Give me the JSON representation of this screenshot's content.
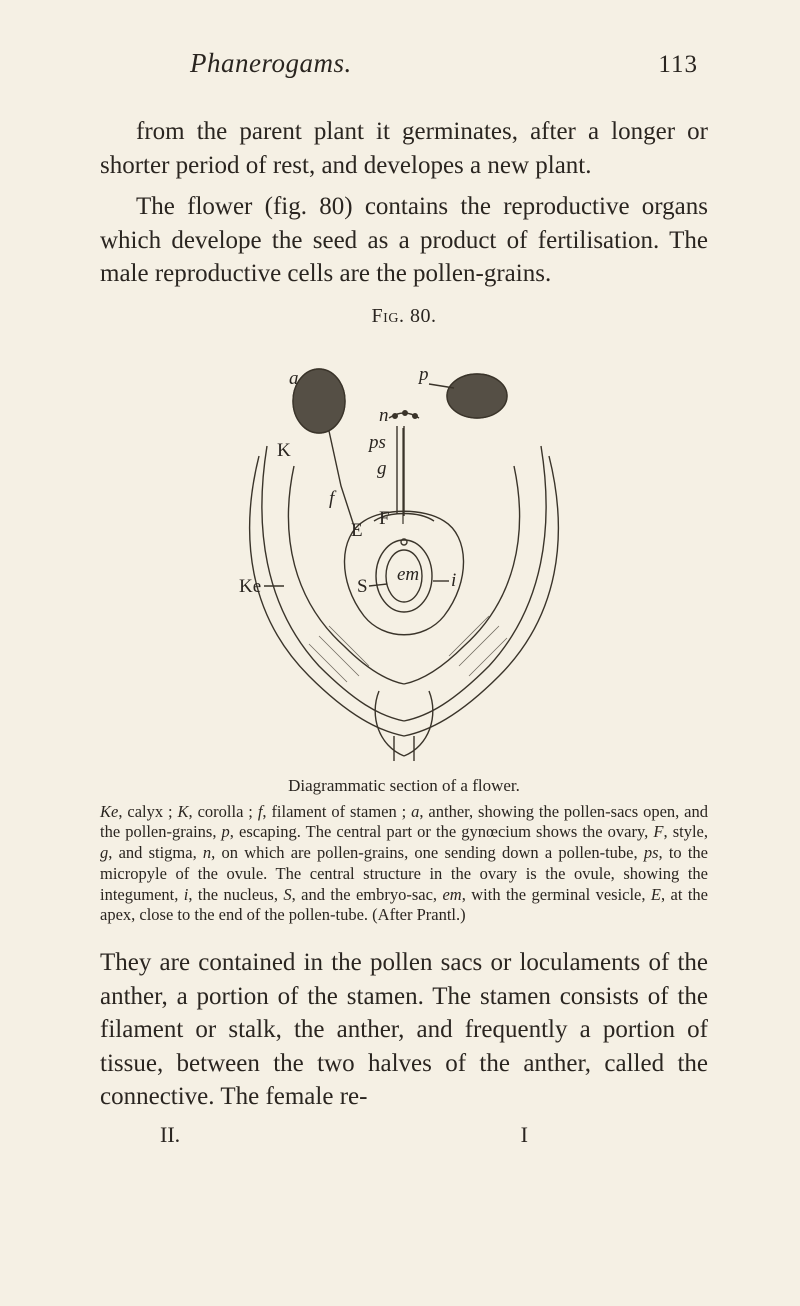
{
  "header": {
    "running_title": "Phanerogams.",
    "page_number": "113"
  },
  "paragraphs": {
    "p1": "from the parent plant it germinates, after a longer or shorter period of rest, and developes a new plant.",
    "p2": "The flower (fig. 80) contains the reproductive organs which develope the seed as a product of fertilisation. The male reproductive cells are the pollen-grains."
  },
  "figure": {
    "label_prefix": "Fig.",
    "label_number": " 80.",
    "caption_title": "Diagrammatic section of a flower.",
    "labels": {
      "a": "a",
      "p": "p",
      "n": "n",
      "ps": "ps",
      "g": "g",
      "K": "K",
      "f": "f",
      "F": "F",
      "E": "E",
      "S": "S",
      "em": "em",
      "i": "i",
      "Ke": "Ke"
    },
    "caption_body_html": "<span class='ital'>Ke</span>, calyx ; <span class='ital'>K</span>, corolla ; <span class='ital'>f</span>, filament of stamen ; <span class='ital'>a</span>, anther, showing the pollen-sacs open, and the pollen-grains, <span class='ital'>p</span>, escaping. The central part or the gynœcium shows the ovary, <span class='ital'>F</span>, style, <span class='ital'>g</span>, and stigma, <span class='ital'>n</span>, on which are pollen-grains, one sending down a pollen-tube, <span class='ital'>ps</span>, to the micropyle of the ovule. The central structure in the ovary is the ovule, showing the integument, <span class='ital'>i</span>, the nucleus, <span class='ital'>S</span>, and the embryo-sac, <span class='ital'>em</span>, with the germinal vesicle, <span class='ital'>E</span>, at the apex, close to the end of the pollen-tube. (After Prantl.)"
  },
  "paragraphs2": {
    "p3": "They are contained in the pollen sacs or loculaments of the anther, a portion of the stamen. The stamen consists of the filament or stalk, the anther, and frequently a portion of tissue, between the two halves of the anther, called the connective. The female re-"
  },
  "footer": {
    "vol": "II.",
    "sig": "I"
  },
  "colors": {
    "page_bg": "#f5f0e4",
    "ink": "#2a2520",
    "figure_stroke": "#3a342a"
  }
}
